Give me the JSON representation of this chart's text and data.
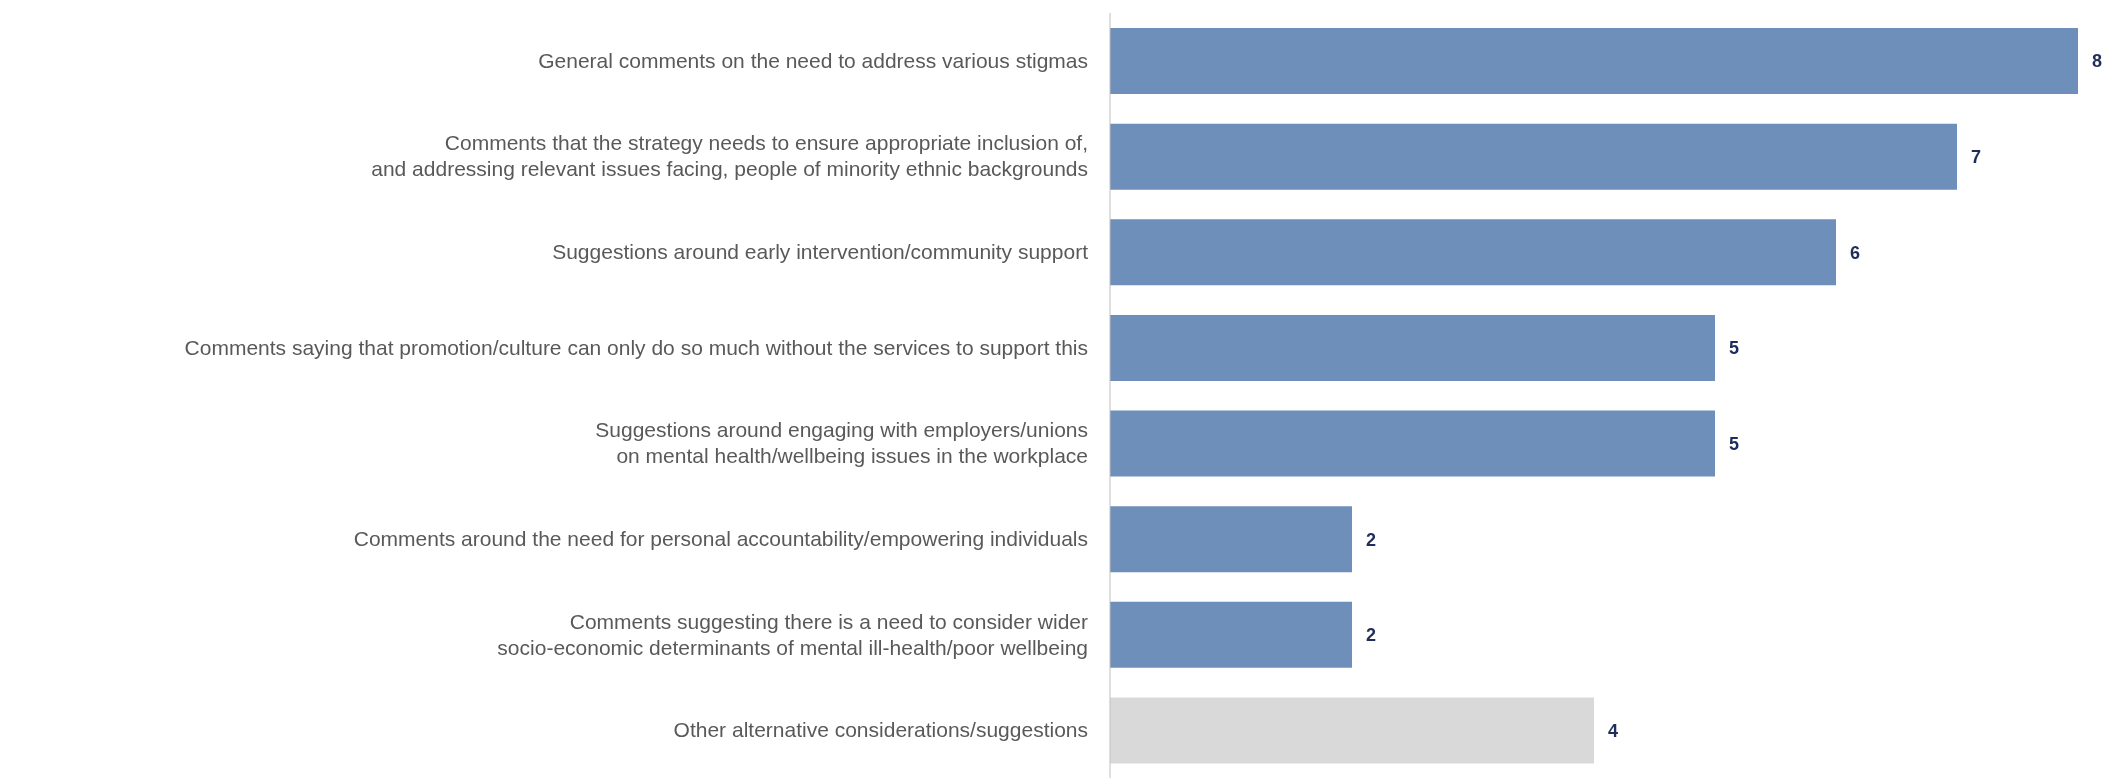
{
  "chart_data": {
    "type": "bar",
    "orientation": "horizontal",
    "data_labels": true,
    "categories": [
      "General comments on the need to address various stigmas",
      "Comments that the strategy needs to ensure appropriate inclusion of,\nand addressing relevant issues facing, people of minority ethnic backgrounds",
      "Suggestions around early intervention/community support",
      "Comments saying that promotion/culture can only do so much without the services to support this",
      "Suggestions around engaging with employers/unions\non mental health/wellbeing issues in the workplace",
      "Comments around the need for personal accountability/empowering individuals",
      "Comments suggesting there is a need to consider wider\nsocio-economic determinants of mental ill-health/poor wellbeing",
      "Other alternative considerations/suggestions"
    ],
    "values": [
      8,
      7,
      6,
      5,
      5,
      2,
      2,
      4
    ],
    "colors": [
      "#6d8fb9",
      "#6d8fb9",
      "#6d8fb9",
      "#6d8fb9",
      "#6d8fb9",
      "#6d8fb9",
      "#6d8fb9",
      "#d9d9d9"
    ]
  }
}
